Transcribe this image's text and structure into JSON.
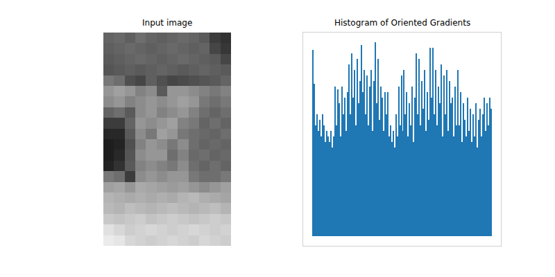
{
  "chart_data": [
    {
      "type": "heatmap",
      "title": "Input image",
      "tick_labels": false,
      "xlim": [
        -0.5,
        11.5
      ],
      "ylim": [
        19.5,
        -0.5
      ],
      "zlim": [
        0,
        255
      ],
      "cells": [
        [
          100,
          105,
          95,
          110,
          100,
          95,
          100,
          105,
          100,
          90,
          60,
          50
        ],
        [
          95,
          100,
          105,
          100,
          95,
          100,
          105,
          100,
          95,
          100,
          70,
          55
        ],
        [
          90,
          95,
          100,
          105,
          100,
          95,
          100,
          105,
          100,
          95,
          90,
          70
        ],
        [
          85,
          90,
          95,
          90,
          95,
          100,
          95,
          90,
          95,
          100,
          95,
          90
        ],
        [
          120,
          110,
          80,
          70,
          95,
          80,
          70,
          75,
          80,
          85,
          90,
          100
        ],
        [
          150,
          160,
          150,
          130,
          140,
          90,
          150,
          150,
          140,
          130,
          120,
          130
        ],
        [
          140,
          150,
          130,
          140,
          150,
          140,
          150,
          160,
          150,
          120,
          110,
          120
        ],
        [
          100,
          110,
          90,
          140,
          150,
          130,
          140,
          150,
          130,
          110,
          100,
          110
        ],
        [
          60,
          60,
          100,
          150,
          140,
          150,
          160,
          130,
          120,
          100,
          110,
          100
        ],
        [
          40,
          40,
          90,
          140,
          120,
          160,
          150,
          120,
          110,
          105,
          100,
          110
        ],
        [
          30,
          35,
          80,
          130,
          150,
          140,
          120,
          140,
          110,
          100,
          105,
          100
        ],
        [
          30,
          40,
          85,
          140,
          150,
          150,
          110,
          130,
          105,
          110,
          100,
          105
        ],
        [
          35,
          50,
          90,
          130,
          140,
          130,
          120,
          140,
          110,
          100,
          110,
          100
        ],
        [
          120,
          110,
          60,
          140,
          150,
          140,
          150,
          150,
          120,
          110,
          110,
          120
        ],
        [
          160,
          165,
          150,
          170,
          165,
          160,
          155,
          160,
          150,
          140,
          150,
          160
        ],
        [
          180,
          175,
          170,
          175,
          170,
          175,
          170,
          180,
          185,
          175,
          170,
          165
        ],
        [
          185,
          180,
          190,
          185,
          180,
          185,
          190,
          185,
          180,
          185,
          190,
          180
        ],
        [
          200,
          195,
          200,
          205,
          195,
          200,
          205,
          200,
          195,
          200,
          205,
          200
        ],
        [
          225,
          215,
          205,
          210,
          215,
          210,
          205,
          210,
          215,
          210,
          205,
          210
        ],
        [
          235,
          230,
          215,
          210,
          205,
          210,
          215,
          210,
          205,
          215,
          210,
          205
        ]
      ]
    },
    {
      "type": "bar",
      "title": "Histogram of Oriented Gradients",
      "color": "#1f77b4",
      "tick_labels": false,
      "xlim": [
        -7,
        136
      ],
      "ylim": [
        -0.0175,
        0.3675
      ],
      "values": [
        0.336,
        0.275,
        0.2,
        0.22,
        0.19,
        0.21,
        0.18,
        0.22,
        0.2,
        0.17,
        0.19,
        0.18,
        0.17,
        0.19,
        0.16,
        0.18,
        0.27,
        0.2,
        0.265,
        0.24,
        0.18,
        0.27,
        0.22,
        0.25,
        0.19,
        0.26,
        0.31,
        0.22,
        0.33,
        0.25,
        0.3,
        0.2,
        0.32,
        0.24,
        0.28,
        0.345,
        0.26,
        0.3,
        0.22,
        0.29,
        0.2,
        0.27,
        0.3,
        0.19,
        0.28,
        0.35,
        0.24,
        0.32,
        0.21,
        0.27,
        0.25,
        0.19,
        0.26,
        0.22,
        0.26,
        0.18,
        0.2,
        0.17,
        0.19,
        0.16,
        0.22,
        0.18,
        0.27,
        0.2,
        0.29,
        0.19,
        0.3,
        0.22,
        0.26,
        0.18,
        0.24,
        0.2,
        0.27,
        0.17,
        0.25,
        0.33,
        0.22,
        0.32,
        0.2,
        0.28,
        0.23,
        0.3,
        0.19,
        0.26,
        0.21,
        0.34,
        0.25,
        0.34,
        0.22,
        0.3,
        0.2,
        0.27,
        0.24,
        0.31,
        0.18,
        0.29,
        0.22,
        0.3,
        0.19,
        0.28,
        0.24,
        0.25,
        0.18,
        0.27,
        0.2,
        0.3,
        0.2,
        0.26,
        0.17,
        0.24,
        0.21,
        0.18,
        0.25,
        0.19,
        0.23,
        0.17,
        0.22,
        0.18,
        0.24,
        0.16,
        0.21,
        0.23,
        0.18,
        0.22,
        0.25,
        0.19,
        0.24,
        0.2,
        0.25,
        0.23
      ]
    }
  ]
}
